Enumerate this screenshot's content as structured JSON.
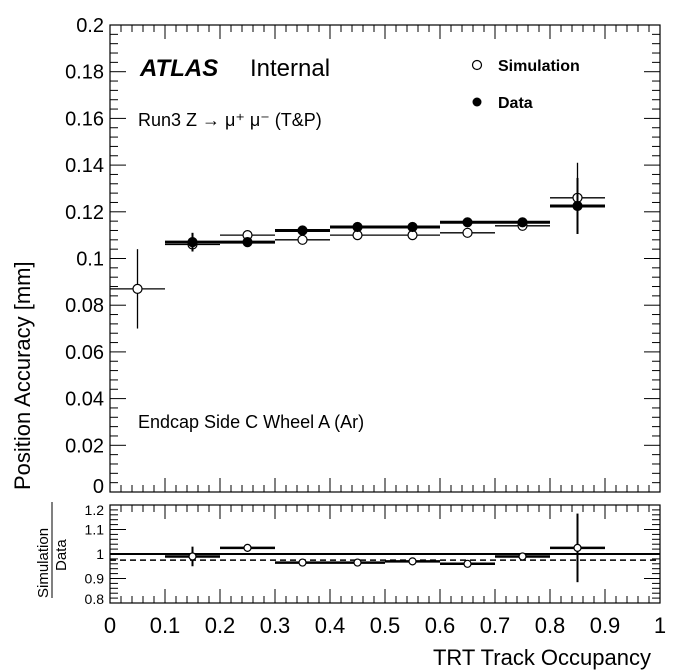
{
  "chart_data": {
    "type": "scatter",
    "title": "",
    "atlas_label": "ATLAS",
    "atlas_status": "Internal",
    "annotation1": "Run3 Z → μ⁺ μ⁻ (T&P)",
    "annotation2": "Endcap Side C Wheel A (Ar)",
    "xlabel": "TRT Track Occupancy",
    "ylabel": "Position Accuracy [mm]",
    "ratio_ylabel_num": "Simulation",
    "ratio_ylabel_den": "Data",
    "xlim": [
      0,
      1
    ],
    "ylim": [
      0,
      0.2
    ],
    "ratio_ylim": [
      0.8,
      1.2
    ],
    "xticks": [
      "0",
      "0.1",
      "0.2",
      "0.3",
      "0.4",
      "0.5",
      "0.6",
      "0.7",
      "0.8",
      "0.9",
      "1"
    ],
    "yticks": [
      "0",
      "0.02",
      "0.04",
      "0.06",
      "0.08",
      "0.1",
      "0.12",
      "0.14",
      "0.16",
      "0.18",
      "0.2"
    ],
    "ratio_yticks": [
      "0.8",
      "0.9",
      "1",
      "1.1",
      "1.2"
    ],
    "legend_position": "top-right",
    "bins": [
      [
        0,
        0.1
      ],
      [
        0.1,
        0.2
      ],
      [
        0.2,
        0.3
      ],
      [
        0.3,
        0.4
      ],
      [
        0.4,
        0.5
      ],
      [
        0.5,
        0.6
      ],
      [
        0.6,
        0.7
      ],
      [
        0.7,
        0.8
      ],
      [
        0.8,
        0.9
      ]
    ],
    "series": [
      {
        "name": "Simulation",
        "marker": "open",
        "values": [
          0.087,
          0.106,
          0.11,
          0.108,
          0.11,
          0.11,
          0.111,
          0.114,
          0.126
        ],
        "errors": [
          0.017,
          0.002,
          0.001,
          0.001,
          0.001,
          0.001,
          0.001,
          0.001,
          0.015
        ]
      },
      {
        "name": "Data",
        "marker": "filled",
        "values": [
          null,
          0.107,
          0.107,
          0.112,
          0.1135,
          0.1135,
          0.1155,
          0.1155,
          0.1225
        ],
        "errors": [
          null,
          0.004,
          0.001,
          0.001,
          0.001,
          0.001,
          0.001,
          0.001,
          0.012
        ]
      }
    ],
    "ratio": {
      "values": [
        null,
        0.99,
        1.025,
        0.965,
        0.965,
        0.97,
        0.96,
        0.99,
        1.025
      ],
      "errors": [
        null,
        0.04,
        0.005,
        0.005,
        0.005,
        0.005,
        0.005,
        0.015,
        0.14
      ],
      "reference": 1.0,
      "dashed": 0.975
    }
  }
}
